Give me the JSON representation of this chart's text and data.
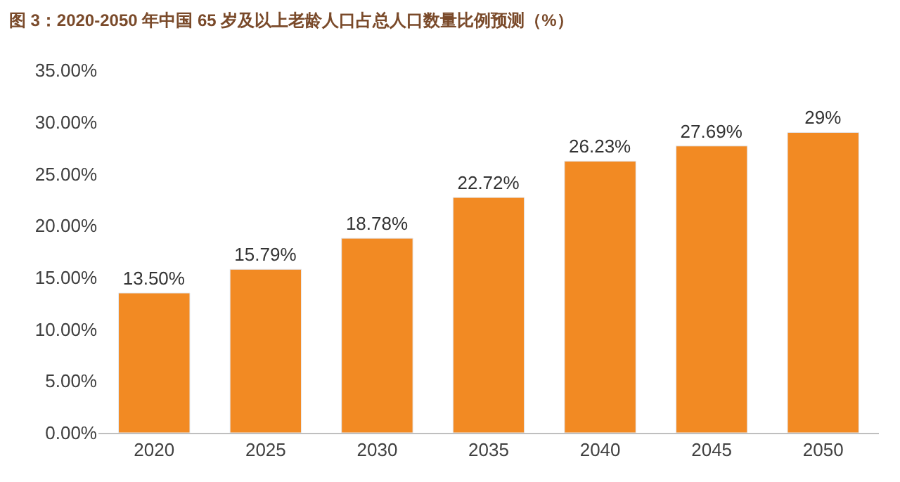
{
  "chart_data": {
    "type": "bar",
    "title": "图 3：2020-2050 年中国 65 岁及以上老龄人口占总人口数量比例预测（%）",
    "categories": [
      "2020",
      "2025",
      "2030",
      "2035",
      "2040",
      "2045",
      "2050"
    ],
    "values": [
      13.5,
      15.79,
      18.78,
      22.72,
      26.23,
      27.69,
      29
    ],
    "value_labels": [
      "13.50%",
      "15.79%",
      "18.78%",
      "22.72%",
      "26.23%",
      "27.69%",
      "29%"
    ],
    "color": "#f28a23",
    "ylim": [
      0,
      35
    ],
    "yticks": [
      {
        "value": 0,
        "label": "0.00%"
      },
      {
        "value": 5,
        "label": "5.00%"
      },
      {
        "value": 10,
        "label": "10.00%"
      },
      {
        "value": 15,
        "label": "15.00%"
      },
      {
        "value": 20,
        "label": "20.00%"
      },
      {
        "value": 25,
        "label": "25.00%"
      },
      {
        "value": 30,
        "label": "30.00%"
      },
      {
        "value": 35,
        "label": "35.00%"
      }
    ]
  }
}
